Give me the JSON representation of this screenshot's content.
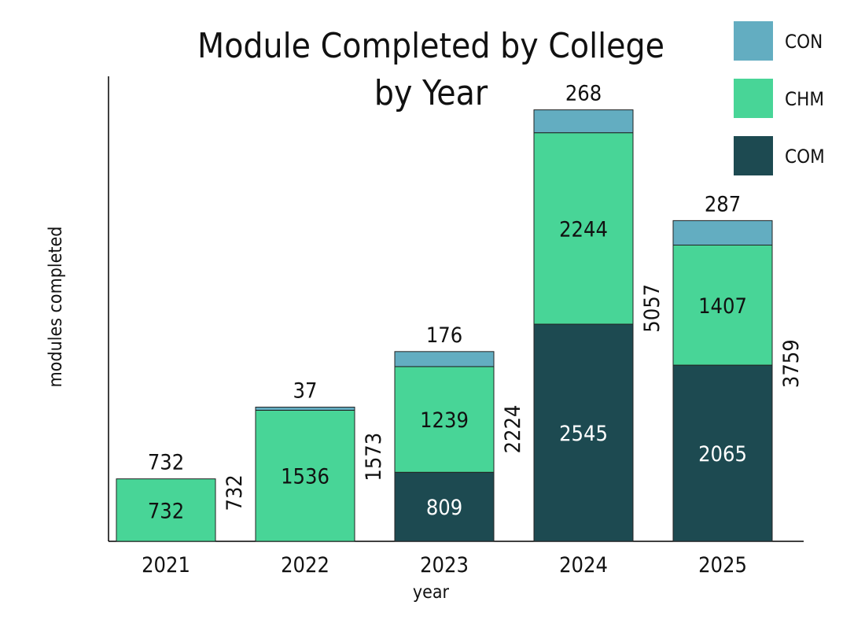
{
  "chart_data": {
    "type": "bar",
    "stacked": true,
    "title": "Module Completed by College by Year",
    "title_lines": [
      "Module Completed by College",
      "by Year"
    ],
    "xlabel": "year",
    "ylabel": "modules completed",
    "categories": [
      "2021",
      "2022",
      "2023",
      "2024",
      "2025"
    ],
    "ylim": [
      0,
      5450
    ],
    "grid": false,
    "legend_position": "top-right",
    "series": [
      {
        "name": "COM",
        "color": "#1d4a51",
        "label_color": "#ffffff",
        "values": [
          0,
          0,
          809,
          2545,
          2065
        ]
      },
      {
        "name": "CHM",
        "color": "#48d597",
        "label_color": "#111111",
        "values": [
          732,
          1536,
          1239,
          2244,
          1407
        ]
      },
      {
        "name": "CON",
        "color": "#63adc1",
        "label_color": "#111111",
        "values": [
          0,
          37,
          176,
          268,
          287
        ]
      }
    ],
    "legend_order": [
      "CON",
      "CHM",
      "COM"
    ],
    "top_labels": [
      "732",
      "37",
      "176",
      "268",
      "287"
    ],
    "totals": [
      "732",
      "1573",
      "2224",
      "5057",
      "3759"
    ]
  }
}
